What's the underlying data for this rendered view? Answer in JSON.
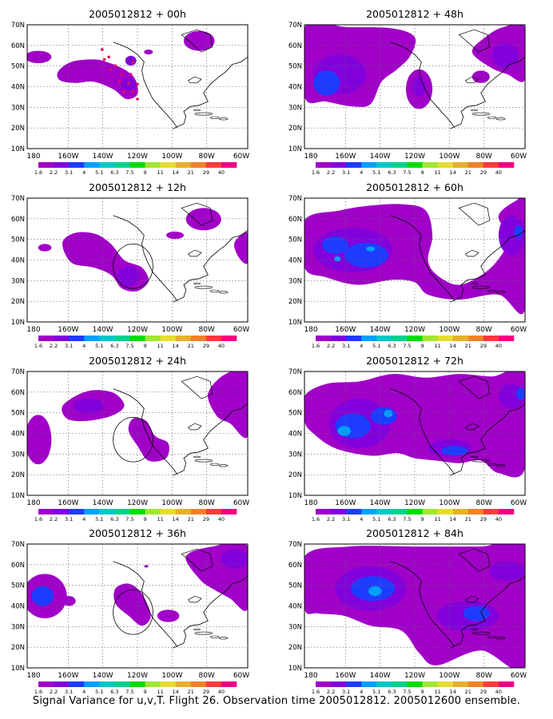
{
  "caption": "Signal Variance for u,v,T. Flight 26. Observation time 2005012812. 2005012600 ensemble.",
  "colorbar": {
    "labels": [
      "1.6",
      "2.2",
      "3.1",
      "4",
      "5.1",
      "6.3",
      "7.5",
      "9",
      "11",
      "14",
      "21",
      "29",
      "40"
    ],
    "colors": [
      "#a000c8",
      "#8200dc",
      "#1e3cff",
      "#00a0ff",
      "#00c8c8",
      "#00d28c",
      "#00dc00",
      "#a0e632",
      "#e6dc32",
      "#e6af2d",
      "#f08228",
      "#fa3c3c",
      "#f00082"
    ]
  },
  "axes": {
    "lat_labels": [
      "70N",
      "60N",
      "50N",
      "40N",
      "30N",
      "20N",
      "10N"
    ],
    "lon_labels": [
      "180",
      "160W",
      "140W",
      "120W",
      "100W",
      "80W",
      "60W"
    ]
  },
  "panels": [
    {
      "title": "2005012812 + 00h"
    },
    {
      "title": "2005012812 + 48h"
    },
    {
      "title": "2005012812 + 12h"
    },
    {
      "title": "2005012812 + 60h"
    },
    {
      "title": "2005012812 + 24h"
    },
    {
      "title": "2005012812 + 72h"
    },
    {
      "title": "2005012812 + 36h"
    },
    {
      "title": "2005012812 + 84h"
    }
  ]
}
